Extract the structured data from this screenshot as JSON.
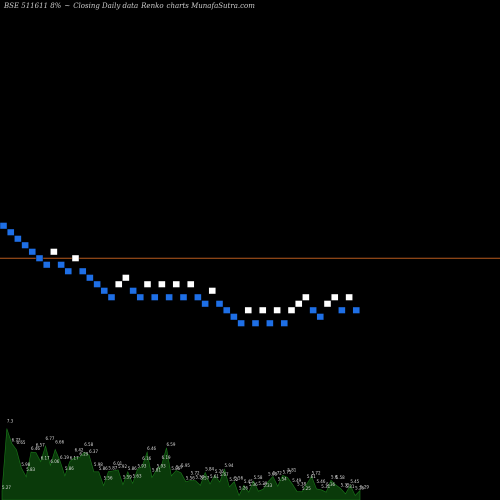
{
  "header": {
    "symbol": "BSE 511611 8%",
    "arrow": "~",
    "description": "Closing Daily data",
    "chart_kind": "Renko",
    "site": "charts MunafaSutra.com"
  },
  "colors": {
    "background": "#000000",
    "up_brick": "#ffffff",
    "down_brick": "#1e6fe6",
    "reference_line": "#b85a1e",
    "volume_fill": "#0a3a0a",
    "volume_stroke": "#1a7a1a"
  },
  "chart_data": {
    "type": "renko",
    "title": "",
    "brick_size_percent": 8,
    "directions": [
      "down",
      "down",
      "down",
      "down",
      "down",
      "down",
      "down",
      "up",
      "down",
      "down",
      "up",
      "down",
      "down",
      "down",
      "down",
      "down",
      "up",
      "up",
      "down",
      "down",
      "up",
      "down",
      "up",
      "down",
      "up",
      "down",
      "up",
      "down",
      "down",
      "up",
      "down",
      "down",
      "down",
      "down",
      "up",
      "down",
      "up",
      "down",
      "up",
      "down",
      "up",
      "up",
      "up",
      "down",
      "down",
      "up",
      "up",
      "down",
      "up",
      "down"
    ],
    "bricks_first_level": 0,
    "reference_level": -6.5,
    "volume": {
      "labels": [
        "5.27",
        "7.3",
        "6.73",
        "6.65",
        "5.98",
        "5.83",
        "6.46",
        "6.57",
        "6.17",
        "6.77",
        "6.06",
        "6.66",
        "6.19",
        "5.86",
        "6.17",
        "6.42",
        "6.29",
        "6.58",
        "6.37",
        "5.98",
        "5.86",
        "5.56",
        "5.87",
        "6.01",
        "5.92",
        "5.59",
        "5.86",
        "5.63",
        "5.93",
        "6.16",
        "6.46",
        "5.81",
        "5.93",
        "6.19",
        "6.59",
        "5.86",
        "5.9",
        "5.95",
        "5.56",
        "5.72",
        "5.59",
        "5.57",
        "5.84",
        "5.61",
        "5.76",
        "5.67",
        "5.94",
        "5.52",
        "5.56",
        "5.26",
        "5.45",
        "5.36",
        "5.58",
        "5.39",
        "5.33",
        "5.68",
        "5.72",
        "5.54",
        "5.75",
        "5.81",
        "5.49",
        "5.38",
        "5.25",
        "5.61",
        "5.72",
        "5.46",
        "5.31",
        "5.36",
        "5.6",
        "5.58",
        "5.35",
        "5.31",
        "5.45",
        "5.26",
        "5.29"
      ]
    }
  }
}
